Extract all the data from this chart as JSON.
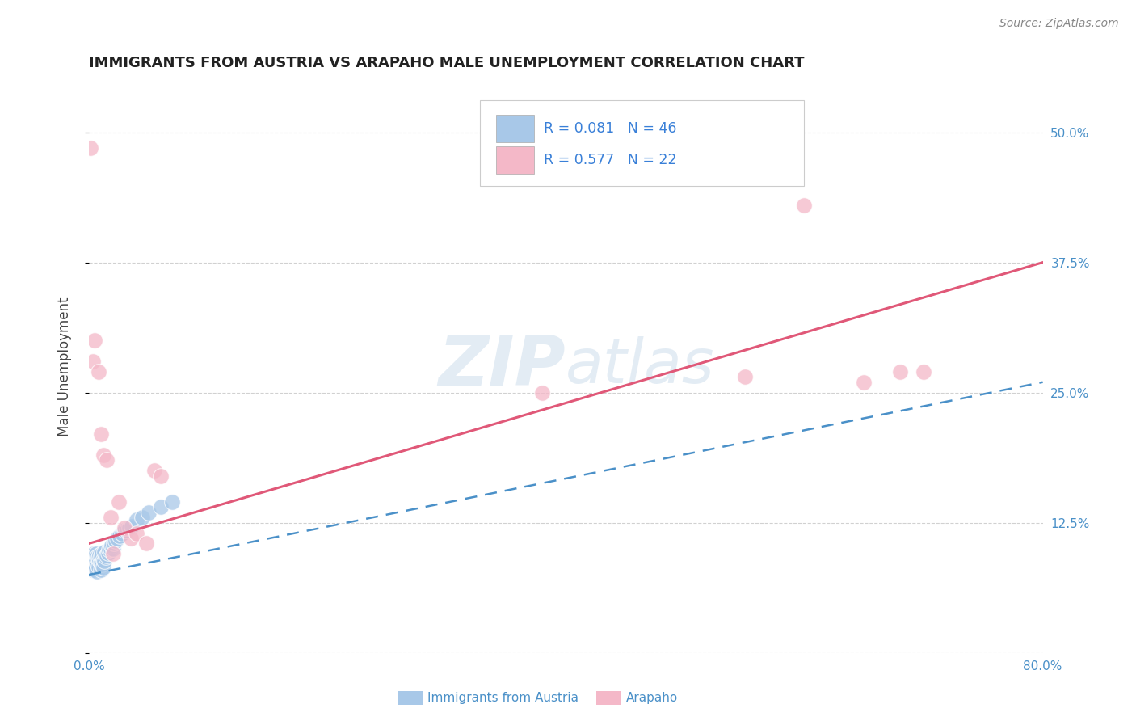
{
  "title": "IMMIGRANTS FROM AUSTRIA VS ARAPAHO MALE UNEMPLOYMENT CORRELATION CHART",
  "source": "Source: ZipAtlas.com",
  "ylabel": "Male Unemployment",
  "xlim": [
    0.0,
    0.8
  ],
  "ylim": [
    0.0,
    0.55
  ],
  "xtick_positions": [
    0.0,
    0.2,
    0.4,
    0.6,
    0.8
  ],
  "xtick_labels": [
    "0.0%",
    "",
    "",
    "",
    "80.0%"
  ],
  "ytick_positions": [
    0.0,
    0.125,
    0.25,
    0.375,
    0.5
  ],
  "ytick_labels": [
    "",
    "12.5%",
    "25.0%",
    "37.5%",
    "50.0%"
  ],
  "blue_color": "#a8c8e8",
  "pink_color": "#f4b8c8",
  "blue_line_color": "#4a90c8",
  "pink_line_color": "#e05878",
  "blue_line_style": "--",
  "pink_line_style": "-",
  "grid_color": "#cccccc",
  "bg_color": "#ffffff",
  "title_color": "#222222",
  "axis_label_color": "#444444",
  "tick_label_color": "#4a90c8",
  "source_color": "#888888",
  "watermark_color": "#c8daea",
  "watermark_alpha": 0.5,
  "legend_entry1_label": "R = 0.081   N = 46",
  "legend_entry2_label": "R = 0.577   N = 22",
  "legend_text_color": "#222222",
  "legend_rn_color": "#3a80d8",
  "bottom_legend_label1": "Immigrants from Austria",
  "bottom_legend_label2": "Arapaho",
  "blue_scatter_x": [
    0.002,
    0.003,
    0.003,
    0.004,
    0.004,
    0.005,
    0.005,
    0.006,
    0.006,
    0.007,
    0.007,
    0.007,
    0.008,
    0.008,
    0.009,
    0.009,
    0.01,
    0.01,
    0.01,
    0.011,
    0.011,
    0.012,
    0.012,
    0.013,
    0.013,
    0.014,
    0.015,
    0.016,
    0.017,
    0.018,
    0.019,
    0.02,
    0.021,
    0.022,
    0.024,
    0.026,
    0.028,
    0.03,
    0.032,
    0.034,
    0.036,
    0.04,
    0.045,
    0.05,
    0.06,
    0.07
  ],
  "blue_scatter_y": [
    0.085,
    0.09,
    0.08,
    0.095,
    0.085,
    0.09,
    0.082,
    0.088,
    0.095,
    0.086,
    0.092,
    0.078,
    0.091,
    0.083,
    0.089,
    0.094,
    0.087,
    0.093,
    0.08,
    0.095,
    0.085,
    0.09,
    0.082,
    0.088,
    0.097,
    0.092,
    0.094,
    0.096,
    0.099,
    0.1,
    0.103,
    0.1,
    0.105,
    0.108,
    0.11,
    0.112,
    0.115,
    0.118,
    0.118,
    0.12,
    0.122,
    0.128,
    0.13,
    0.135,
    0.14,
    0.145
  ],
  "pink_scatter_x": [
    0.001,
    0.003,
    0.005,
    0.008,
    0.01,
    0.012,
    0.015,
    0.018,
    0.02,
    0.025,
    0.03,
    0.035,
    0.04,
    0.048,
    0.055,
    0.06,
    0.38,
    0.55,
    0.6,
    0.65,
    0.68,
    0.7
  ],
  "pink_scatter_y": [
    0.485,
    0.28,
    0.3,
    0.27,
    0.21,
    0.19,
    0.185,
    0.13,
    0.095,
    0.145,
    0.12,
    0.11,
    0.115,
    0.105,
    0.175,
    0.17,
    0.25,
    0.265,
    0.43,
    0.26,
    0.27,
    0.27
  ],
  "blue_line_x": [
    0.0,
    0.8
  ],
  "blue_line_y": [
    0.075,
    0.26
  ],
  "pink_line_x": [
    0.0,
    0.8
  ],
  "pink_line_y": [
    0.105,
    0.375
  ]
}
